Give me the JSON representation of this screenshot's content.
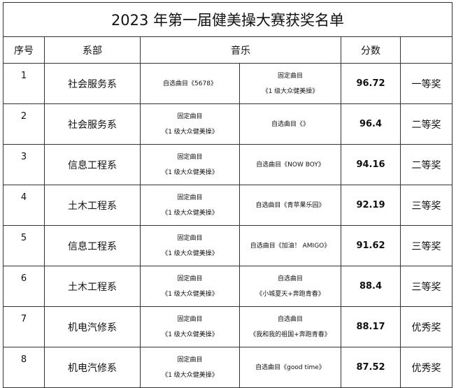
{
  "title": "2023 年第一届健美操大赛获奖名单",
  "headers": {
    "index": "序号",
    "department": "系部",
    "music": "音乐",
    "score": "分数",
    "award": ""
  },
  "rows": [
    {
      "index": "1",
      "department": "社会服务系",
      "music_a": [
        "自选曲目《5678》"
      ],
      "music_b": [
        "固定曲目",
        "《1 级大众健美操》"
      ],
      "score": "96.72",
      "award": "一等奖"
    },
    {
      "index": "2",
      "department": "社会服务系",
      "music_a": [
        "固定曲目",
        "《1 级大众健美操》"
      ],
      "music_b": [
        "自选曲目《》"
      ],
      "score": "96.4",
      "award": "二等奖"
    },
    {
      "index": "3",
      "department": "信息工程系",
      "music_a": [
        "固定曲目",
        "《1 级大众健美操》"
      ],
      "music_b": [
        "自选曲目《NOW BOY》"
      ],
      "score": "94.16",
      "award": "二等奖"
    },
    {
      "index": "4",
      "department": "土木工程系",
      "music_a": [
        "固定曲目",
        "《1 级大众健美操》"
      ],
      "music_b": [
        "自选曲目《青苹果乐园》"
      ],
      "score": "92.19",
      "award": "三等奖"
    },
    {
      "index": "5",
      "department": "信息工程系",
      "music_a": [
        "固定曲目",
        "《1 级大众健美操》"
      ],
      "music_b": [
        "自选曲目《加油！ AMIGO》"
      ],
      "score": "91.62",
      "award": "三等奖"
    },
    {
      "index": "6",
      "department": "土木工程系",
      "music_a": [
        "固定曲目",
        "《1 级大众健美操》"
      ],
      "music_b": [
        "自选曲目",
        "《小城夏天+奔跑青春》"
      ],
      "score": "88.4",
      "award": "三等奖"
    },
    {
      "index": "7",
      "department": "机电汽修系",
      "music_a": [
        "固定曲目",
        "《1 级大众健美操》"
      ],
      "music_b": [
        "自选曲目",
        "《我和我的祖国+奔跑青春》"
      ],
      "score": "88.17",
      "award": "优秀奖"
    },
    {
      "index": "8",
      "department": "机电汽修系",
      "music_a": [
        "固定曲目",
        "《1 级大众健美操》"
      ],
      "music_b": [
        "自选曲目《good time》"
      ],
      "score": "87.52",
      "award": "优秀奖"
    }
  ]
}
